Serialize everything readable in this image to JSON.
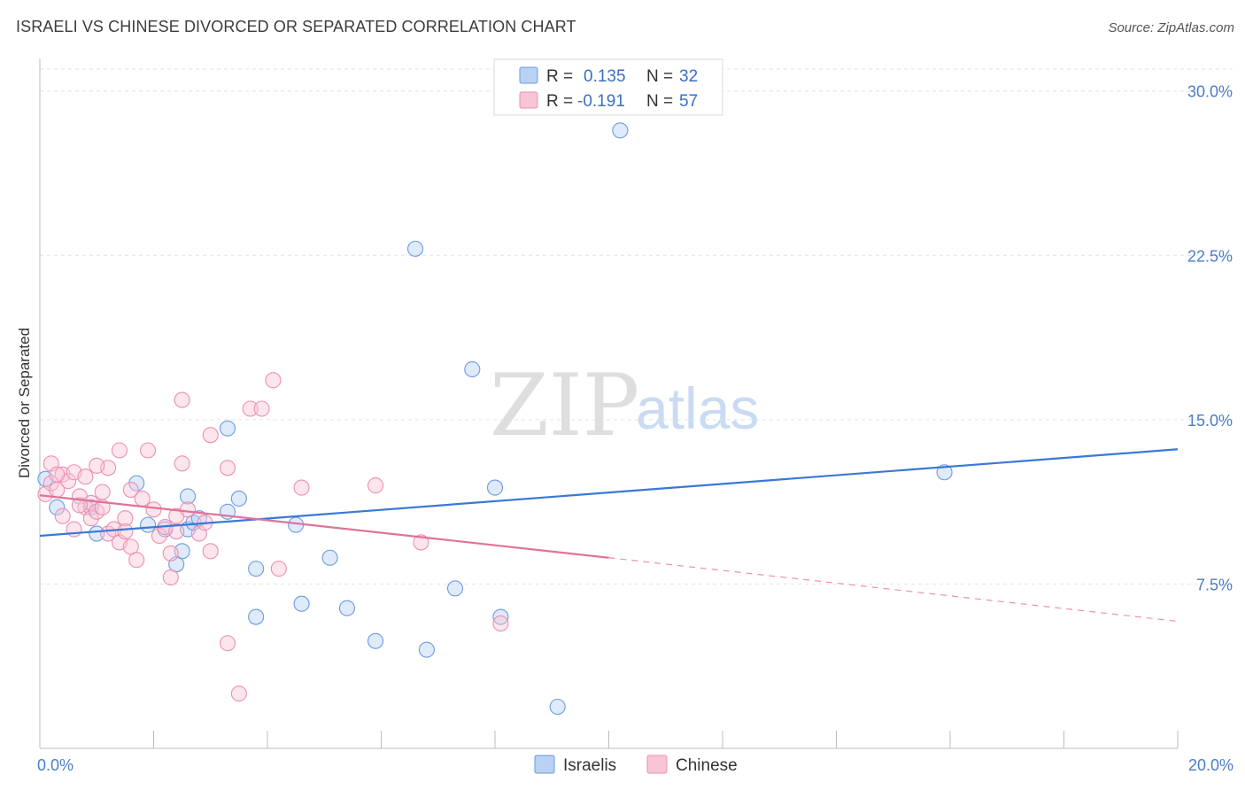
{
  "header": {
    "title": "ISRAELI VS CHINESE DIVORCED OR SEPARATED CORRELATION CHART",
    "source": "Source: ZipAtlas.com"
  },
  "watermark": {
    "part1": "ZIP",
    "part2": "atlas"
  },
  "legend": {
    "r_label": "R =",
    "n_label": "N =",
    "rows": [
      {
        "name": "Israelis",
        "r": "0.135",
        "n": "32",
        "color": "#6a9be0",
        "fill": "#b9d1f3"
      },
      {
        "name": "Chinese",
        "r": "-0.191",
        "n": "57",
        "color": "#ec8fb0",
        "fill": "#f8c5d6"
      }
    ]
  },
  "chart_data": {
    "type": "scatter",
    "title": "ISRAELI VS CHINESE DIVORCED OR SEPARATED CORRELATION CHART",
    "xlabel": "",
    "ylabel": "Divorced or Separated",
    "xlim": [
      0,
      20
    ],
    "ylim": [
      0,
      31
    ],
    "x_tick_labels": [
      "0.0%",
      "20.0%"
    ],
    "y_ticks": [
      7.5,
      15.0,
      22.5,
      30.0
    ],
    "y_tick_labels": [
      "7.5%",
      "15.0%",
      "22.5%",
      "30.0%"
    ],
    "grid": true,
    "series": [
      {
        "name": "Israelis",
        "color": "#6a9be0",
        "points": [
          [
            0.1,
            12.3
          ],
          [
            0.3,
            11.0
          ],
          [
            0.9,
            11.0
          ],
          [
            1.7,
            12.1
          ],
          [
            1.9,
            10.2
          ],
          [
            2.2,
            10.0
          ],
          [
            2.6,
            11.5
          ],
          [
            2.5,
            9.0
          ],
          [
            2.4,
            8.4
          ],
          [
            2.6,
            10.0
          ],
          [
            2.7,
            10.3
          ],
          [
            2.8,
            10.5
          ],
          [
            3.3,
            10.8
          ],
          [
            3.3,
            14.6
          ],
          [
            3.5,
            11.4
          ],
          [
            3.8,
            8.2
          ],
          [
            3.8,
            6.0
          ],
          [
            4.5,
            10.2
          ],
          [
            4.6,
            6.6
          ],
          [
            5.1,
            8.7
          ],
          [
            5.4,
            6.4
          ],
          [
            5.9,
            4.9
          ],
          [
            6.6,
            22.8
          ],
          [
            6.8,
            4.5
          ],
          [
            7.3,
            7.3
          ],
          [
            7.6,
            17.3
          ],
          [
            8.0,
            11.9
          ],
          [
            8.1,
            6.0
          ],
          [
            9.1,
            1.9
          ],
          [
            10.2,
            28.2
          ],
          [
            1.0,
            9.8
          ],
          [
            15.9,
            12.6
          ]
        ]
      },
      {
        "name": "Chinese",
        "color": "#ec8fb0",
        "points": [
          [
            0.1,
            11.6
          ],
          [
            0.2,
            12.1
          ],
          [
            0.3,
            11.8
          ],
          [
            0.4,
            12.5
          ],
          [
            0.2,
            13.0
          ],
          [
            0.5,
            12.2
          ],
          [
            0.6,
            12.6
          ],
          [
            0.7,
            11.5
          ],
          [
            0.8,
            11.0
          ],
          [
            0.9,
            11.2
          ],
          [
            0.9,
            10.5
          ],
          [
            1.0,
            10.8
          ],
          [
            1.1,
            11.7
          ],
          [
            1.1,
            11.0
          ],
          [
            1.2,
            9.8
          ],
          [
            1.2,
            12.8
          ],
          [
            1.3,
            10.0
          ],
          [
            1.4,
            13.6
          ],
          [
            1.4,
            9.4
          ],
          [
            1.5,
            10.5
          ],
          [
            1.6,
            9.2
          ],
          [
            1.6,
            11.8
          ],
          [
            1.7,
            8.6
          ],
          [
            1.8,
            11.4
          ],
          [
            1.9,
            13.6
          ],
          [
            2.0,
            10.9
          ],
          [
            2.1,
            9.7
          ],
          [
            2.2,
            10.1
          ],
          [
            2.3,
            8.9
          ],
          [
            2.3,
            7.8
          ],
          [
            2.4,
            10.6
          ],
          [
            2.4,
            9.9
          ],
          [
            2.5,
            13.0
          ],
          [
            2.5,
            15.9
          ],
          [
            2.6,
            10.9
          ],
          [
            2.8,
            9.8
          ],
          [
            2.9,
            10.3
          ],
          [
            3.0,
            9.0
          ],
          [
            3.0,
            14.3
          ],
          [
            3.3,
            12.8
          ],
          [
            3.3,
            4.8
          ],
          [
            3.5,
            2.5
          ],
          [
            3.7,
            15.5
          ],
          [
            3.9,
            15.5
          ],
          [
            4.1,
            16.8
          ],
          [
            4.2,
            8.2
          ],
          [
            4.6,
            11.9
          ],
          [
            5.9,
            12.0
          ],
          [
            6.7,
            9.4
          ],
          [
            0.4,
            10.6
          ],
          [
            0.6,
            10.0
          ],
          [
            0.8,
            12.4
          ],
          [
            1.0,
            12.9
          ],
          [
            1.5,
            9.9
          ],
          [
            0.3,
            12.5
          ],
          [
            8.1,
            5.7
          ],
          [
            0.7,
            11.1
          ]
        ]
      }
    ],
    "trend_lines": [
      {
        "name": "Israelis",
        "x0": 0,
        "y0": 9.7,
        "x1": 20,
        "y1": 13.65,
        "style": "solid"
      },
      {
        "name": "Chinese",
        "x0": 0,
        "y0": 11.55,
        "x1": 10,
        "y1": 8.7,
        "x2": 20,
        "y2": 5.8,
        "style": "solid-then-dashed"
      }
    ]
  },
  "bottom_legend": [
    {
      "name": "Israelis",
      "color": "#6a9be0",
      "fill": "#b9d1f3"
    },
    {
      "name": "Chinese",
      "color": "#ec8fb0",
      "fill": "#f8c5d6"
    }
  ]
}
